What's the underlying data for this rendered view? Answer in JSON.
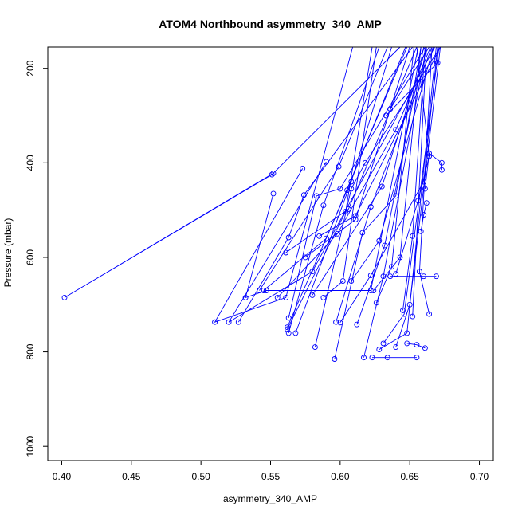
{
  "chart_data": {
    "type": "line",
    "title": "ATOM4 Northbound asymmetry_340_AMP",
    "xlabel": "asymmetry_340_AMP",
    "ylabel": "Pressure (mbar)",
    "xlim": [
      0.39,
      0.71
    ],
    "ylim": [
      1030,
      155
    ],
    "y_reversed": true,
    "grid": false,
    "markers": "open-circle",
    "x_ticks": [
      "0.40",
      "0.45",
      "0.50",
      "0.55",
      "0.60",
      "0.65",
      "0.70"
    ],
    "y_ticks": [
      "200",
      "400",
      "600",
      "800",
      "1000"
    ],
    "series_color": "#0000ff",
    "profiles": [
      {
        "points": [
          [
            0.552,
            422
          ],
          [
            0.402,
            685
          ],
          [
            0.551,
            425
          ],
          [
            0.643,
            155
          ]
        ]
      },
      {
        "points": [
          [
            0.552,
            465
          ],
          [
            0.532,
            685
          ],
          [
            0.547,
            670
          ],
          [
            0.622,
            670
          ],
          [
            0.656,
            155
          ]
        ]
      },
      {
        "points": [
          [
            0.573,
            412
          ],
          [
            0.51,
            737
          ],
          [
            0.561,
            685
          ],
          [
            0.609,
            155
          ]
        ]
      },
      {
        "points": [
          [
            0.59,
            398
          ],
          [
            0.52,
            737
          ],
          [
            0.58,
            630
          ],
          [
            0.668,
            155
          ]
        ]
      },
      {
        "points": [
          [
            0.527,
            737
          ],
          [
            0.563,
            558
          ],
          [
            0.574,
            468
          ],
          [
            0.652,
            155
          ]
        ]
      },
      {
        "points": [
          [
            0.542,
            670
          ],
          [
            0.599,
            408
          ],
          [
            0.634,
            155
          ]
        ]
      },
      {
        "points": [
          [
            0.561,
            590
          ],
          [
            0.606,
            498
          ],
          [
            0.655,
            155
          ]
        ]
      },
      {
        "points": [
          [
            0.563,
            760
          ],
          [
            0.588,
            490
          ],
          [
            0.628,
            155
          ]
        ]
      },
      {
        "points": [
          [
            0.562,
            748
          ],
          [
            0.605,
            458
          ],
          [
            0.647,
            155
          ]
        ]
      },
      {
        "points": [
          [
            0.563,
            728
          ],
          [
            0.583,
            470
          ],
          [
            0.6,
            455
          ],
          [
            0.661,
            155
          ]
        ]
      },
      {
        "points": [
          [
            0.568,
            760
          ],
          [
            0.608,
            440
          ],
          [
            0.637,
            155
          ]
        ]
      },
      {
        "points": [
          [
            0.562,
            752
          ],
          [
            0.604,
            503
          ],
          [
            0.623,
            155
          ]
        ]
      },
      {
        "points": [
          [
            0.582,
            790
          ],
          [
            0.608,
            455
          ],
          [
            0.618,
            400
          ],
          [
            0.672,
            155
          ]
        ]
      },
      {
        "points": [
          [
            0.555,
            685
          ],
          [
            0.598,
            550
          ],
          [
            0.64,
            330
          ],
          [
            0.665,
            155
          ]
        ]
      },
      {
        "points": [
          [
            0.585,
            555
          ],
          [
            0.611,
            512
          ],
          [
            0.672,
            155
          ]
        ]
      },
      {
        "points": [
          [
            0.596,
            815
          ],
          [
            0.616,
            548
          ],
          [
            0.64,
            470
          ],
          [
            0.658,
            155
          ]
        ]
      },
      {
        "points": [
          [
            0.597,
            737
          ],
          [
            0.622,
            493
          ],
          [
            0.666,
            155
          ]
        ]
      },
      {
        "points": [
          [
            0.6,
            738
          ],
          [
            0.622,
            638
          ],
          [
            0.66,
            440
          ],
          [
            0.67,
            155
          ]
        ]
      },
      {
        "points": [
          [
            0.608,
            650
          ],
          [
            0.628,
            565
          ],
          [
            0.667,
            155
          ]
        ]
      },
      {
        "points": [
          [
            0.612,
            742
          ],
          [
            0.632,
            575
          ],
          [
            0.66,
            155
          ]
        ]
      },
      {
        "points": [
          [
            0.617,
            812
          ],
          [
            0.631,
            640
          ],
          [
            0.662,
            155
          ]
        ]
      },
      {
        "points": [
          [
            0.623,
            812
          ],
          [
            0.634,
            812
          ],
          [
            0.655,
            812
          ]
        ]
      },
      {
        "points": [
          [
            0.628,
            795
          ],
          [
            0.648,
            760
          ],
          [
            0.669,
            155
          ]
        ]
      },
      {
        "points": [
          [
            0.631,
            782
          ],
          [
            0.646,
            720
          ],
          [
            0.671,
            155
          ]
        ]
      },
      {
        "points": [
          [
            0.636,
            640
          ],
          [
            0.66,
            640
          ],
          [
            0.669,
            640
          ]
        ]
      },
      {
        "points": [
          [
            0.64,
            790
          ],
          [
            0.65,
            700
          ],
          [
            0.672,
            155
          ]
        ]
      },
      {
        "points": [
          [
            0.645,
            712
          ],
          [
            0.652,
            555
          ],
          [
            0.661,
            155
          ]
        ]
      },
      {
        "points": [
          [
            0.648,
            782
          ],
          [
            0.655,
            785
          ],
          [
            0.661,
            792
          ]
        ]
      },
      {
        "points": [
          [
            0.652,
            725
          ],
          [
            0.662,
            155
          ]
        ]
      },
      {
        "points": [
          [
            0.658,
            545
          ],
          [
            0.66,
            510
          ],
          [
            0.662,
            485
          ]
        ]
      },
      {
        "points": [
          [
            0.661,
            455
          ],
          [
            0.664,
            380
          ],
          [
            0.673,
            400
          ],
          [
            0.673,
            415
          ]
        ]
      },
      {
        "points": [
          [
            0.64,
            635
          ],
          [
            0.656,
            480
          ],
          [
            0.664,
            386
          ],
          [
            0.655,
            155
          ]
        ]
      },
      {
        "points": [
          [
            0.588,
            685
          ],
          [
            0.602,
            650
          ],
          [
            0.626,
            155
          ]
        ]
      },
      {
        "points": [
          [
            0.575,
            600
          ],
          [
            0.611,
            520
          ],
          [
            0.65,
            155
          ]
        ]
      },
      {
        "points": [
          [
            0.58,
            680
          ],
          [
            0.63,
            450
          ],
          [
            0.662,
            155
          ]
        ]
      },
      {
        "points": [
          [
            0.545,
            670
          ],
          [
            0.59,
            560
          ],
          [
            0.648,
            155
          ]
        ]
      },
      {
        "points": [
          [
            0.626,
            696
          ],
          [
            0.637,
            620
          ],
          [
            0.653,
            155
          ]
        ]
      },
      {
        "points": [
          [
            0.664,
            720
          ],
          [
            0.657,
            630
          ],
          [
            0.666,
            155
          ]
        ]
      },
      {
        "points": [
          [
            0.633,
            300
          ],
          [
            0.67,
            188
          ],
          [
            0.67,
            155
          ]
        ]
      },
      {
        "points": [
          [
            0.636,
            286
          ],
          [
            0.664,
            155
          ]
        ]
      },
      {
        "points": [
          [
            0.624,
            670
          ],
          [
            0.643,
            600
          ],
          [
            0.658,
            155
          ]
        ]
      }
    ]
  }
}
